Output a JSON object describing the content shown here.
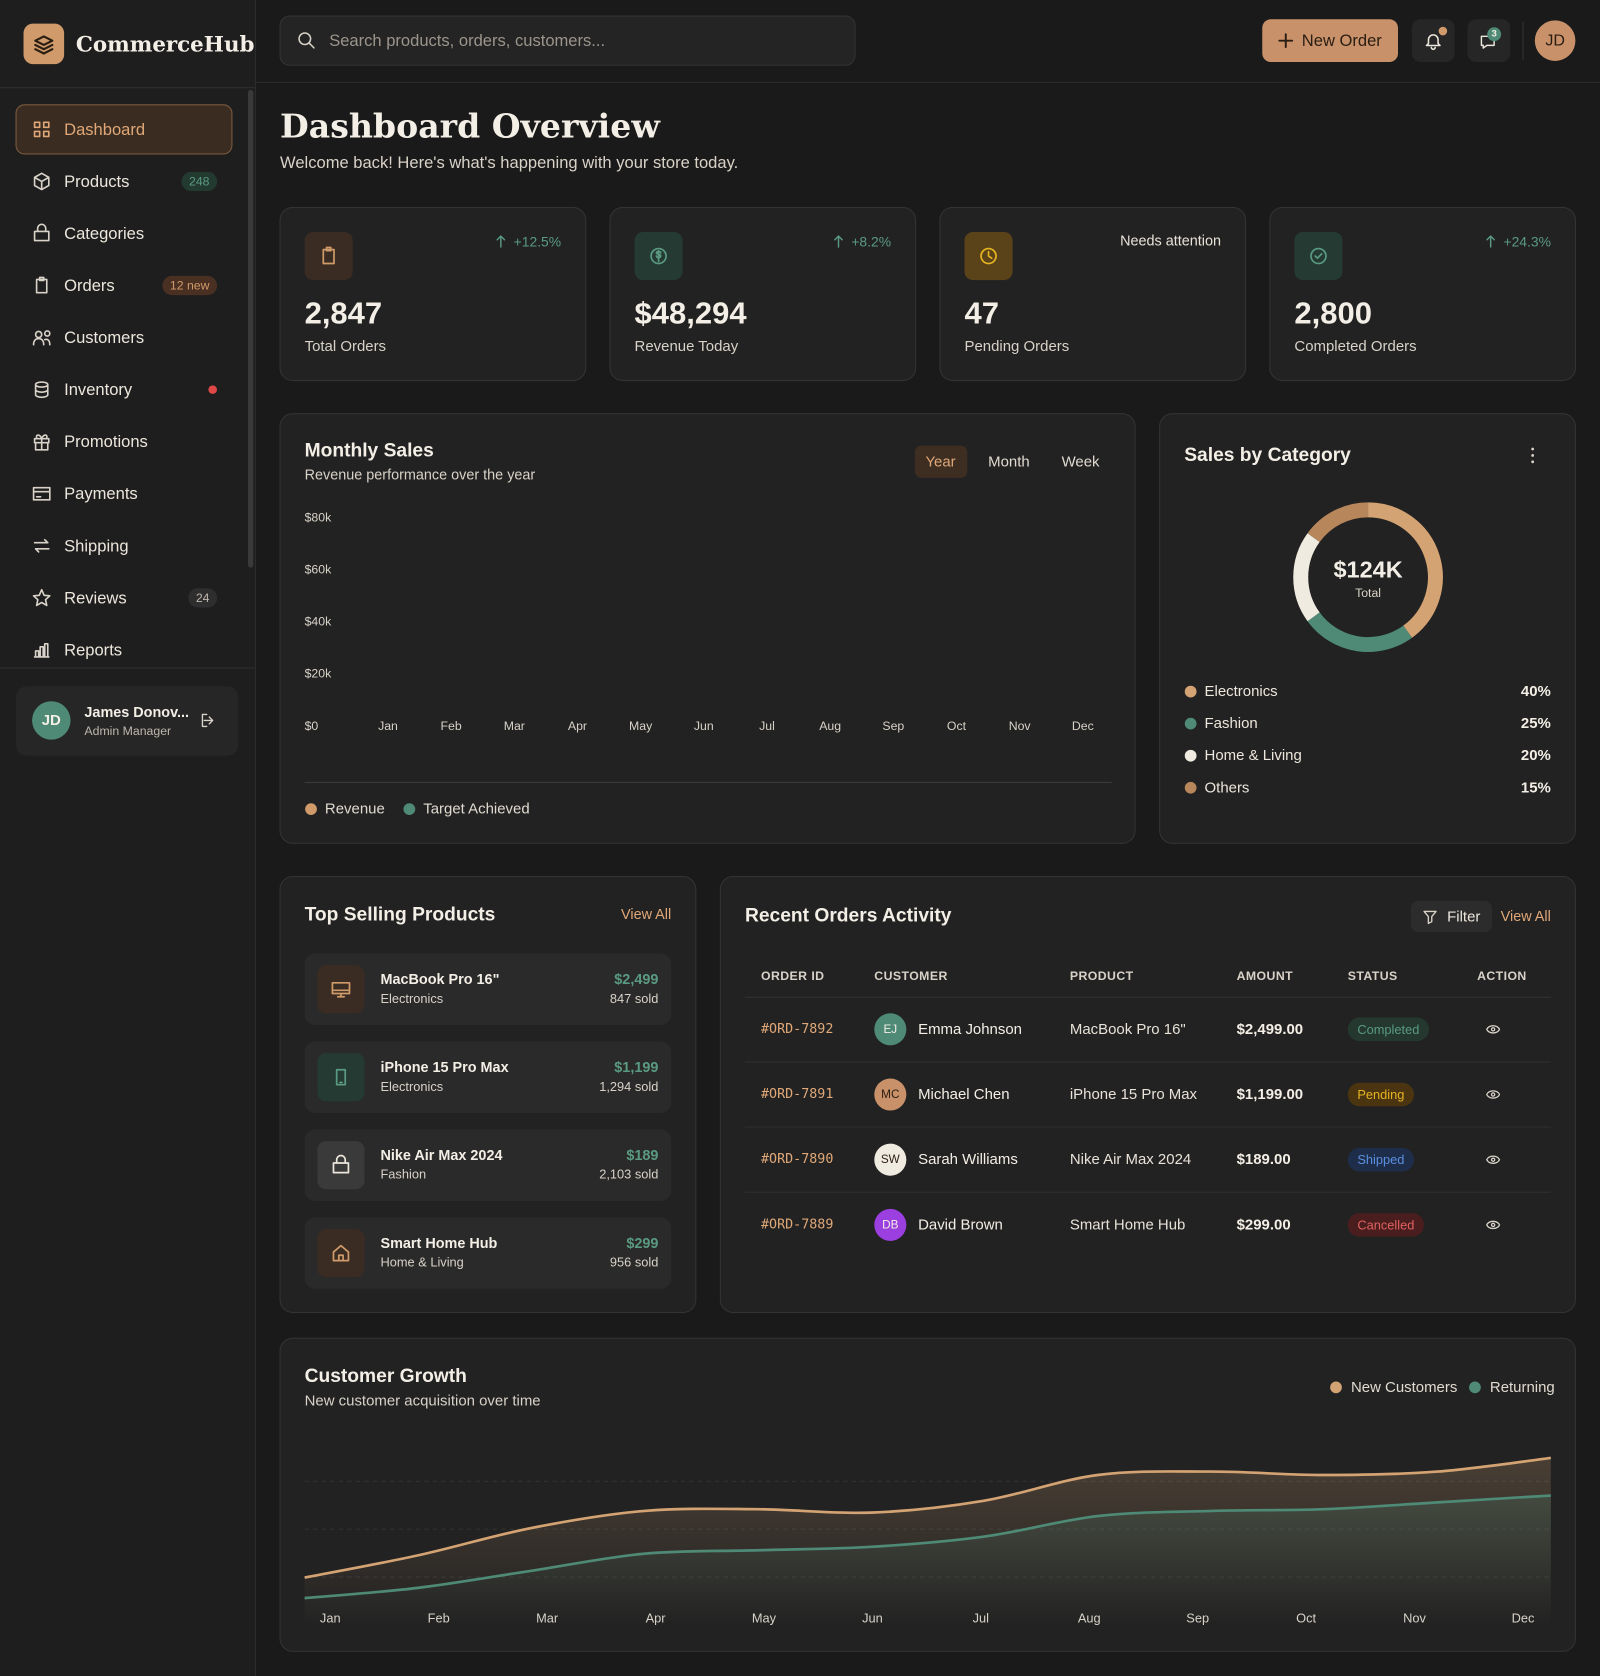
{
  "brand": "CommerceHub",
  "search_placeholder": "Search products, orders, customers...",
  "header": {
    "new_order": "New Order",
    "messages_badge": "3",
    "avatar": "JD"
  },
  "nav": [
    {
      "label": "Dashboard"
    },
    {
      "label": "Products",
      "badge": "248"
    },
    {
      "label": "Categories"
    },
    {
      "label": "Orders",
      "badge": "12 new"
    },
    {
      "label": "Customers"
    },
    {
      "label": "Inventory"
    },
    {
      "label": "Promotions"
    },
    {
      "label": "Payments"
    },
    {
      "label": "Shipping"
    },
    {
      "label": "Reviews",
      "badge": "24"
    },
    {
      "label": "Reports"
    }
  ],
  "user": {
    "initials": "JD",
    "name": "James Donov...",
    "role": "Admin Manager"
  },
  "page": {
    "title": "Dashboard Overview",
    "subtitle": "Welcome back! Here's what's happening with your store today."
  },
  "stats": [
    {
      "value": "2,847",
      "label": "Total Orders",
      "change": "+12.5%"
    },
    {
      "value": "$48,294",
      "label": "Revenue Today",
      "change": "+8.2%"
    },
    {
      "value": "47",
      "label": "Pending Orders",
      "note": "Needs attention"
    },
    {
      "value": "2,800",
      "label": "Completed Orders",
      "change": "+24.3%"
    }
  ],
  "monthly_sales": {
    "title": "Monthly Sales",
    "subtitle": "Revenue performance over the year",
    "tabs": [
      "Year",
      "Month",
      "Week"
    ],
    "chart_data": {
      "type": "bar",
      "categories": [
        "Jan",
        "Feb",
        "Mar",
        "Apr",
        "May",
        "Jun",
        "Jul",
        "Aug",
        "Sep",
        "Oct",
        "Nov",
        "Dec"
      ],
      "ylim": [
        0,
        80000
      ],
      "yticks": [
        {
          "value": 0,
          "label": "$0"
        },
        {
          "value": 20000,
          "label": "$20k"
        },
        {
          "value": 40000,
          "label": "$40k"
        },
        {
          "value": 60000,
          "label": "$60k"
        },
        {
          "value": 80000,
          "label": "$80k"
        }
      ],
      "grid": false,
      "series": [
        {
          "name": "Revenue",
          "color": "#d09a6a",
          "values": [
            null,
            null,
            null,
            null,
            null,
            null,
            null,
            null,
            null,
            null,
            null,
            null
          ]
        },
        {
          "name": "Target Achieved",
          "color": "#4e8a76",
          "values": [
            null,
            null,
            null,
            null,
            null,
            null,
            null,
            null,
            null,
            null,
            null,
            null
          ]
        }
      ]
    }
  },
  "category": {
    "title": "Sales by Category",
    "center_value": "$124K",
    "center_label": "Total",
    "chart_data": {
      "type": "pie",
      "categories": [
        "Electronics",
        "Fashion",
        "Home & Living",
        "Others"
      ],
      "values": [
        40,
        25,
        20,
        15
      ],
      "value_labels": [
        "40%",
        "25%",
        "20%",
        "15%"
      ],
      "colors": [
        "#d4a373",
        "#4e8a76",
        "#f0ebe0",
        "#b8865b"
      ]
    }
  },
  "top_products": {
    "title": "Top Selling Products",
    "view_all": "View All",
    "items": [
      {
        "name": "MacBook Pro 16\"",
        "category": "Electronics",
        "price": "$2,499",
        "sold": "847 sold"
      },
      {
        "name": "iPhone 15 Pro Max",
        "category": "Electronics",
        "price": "$1,199",
        "sold": "1,294 sold"
      },
      {
        "name": "Nike Air Max 2024",
        "category": "Fashion",
        "price": "$189",
        "sold": "2,103 sold"
      },
      {
        "name": "Smart Home Hub",
        "category": "Home & Living",
        "price": "$299",
        "sold": "956 sold"
      }
    ]
  },
  "orders": {
    "title": "Recent Orders Activity",
    "filter": "Filter",
    "view_all": "View All",
    "columns": [
      "ORDER ID",
      "CUSTOMER",
      "PRODUCT",
      "AMOUNT",
      "STATUS",
      "ACTION"
    ],
    "rows": [
      {
        "id": "#ORD-7892",
        "initials": "EJ",
        "customer": "Emma Johnson",
        "product": "MacBook Pro 16\"",
        "amount": "$2,499.00",
        "status": "Completed"
      },
      {
        "id": "#ORD-7891",
        "initials": "MC",
        "customer": "Michael Chen",
        "product": "iPhone 15 Pro Max",
        "amount": "$1,199.00",
        "status": "Pending"
      },
      {
        "id": "#ORD-7890",
        "initials": "SW",
        "customer": "Sarah Williams",
        "product": "Nike Air Max 2024",
        "amount": "$189.00",
        "status": "Shipped"
      },
      {
        "id": "#ORD-7889",
        "initials": "DB",
        "customer": "David Brown",
        "product": "Smart Home Hub",
        "amount": "$299.00",
        "status": "Cancelled"
      }
    ]
  },
  "growth": {
    "title": "Customer Growth",
    "subtitle": "New customer acquisition over time",
    "chart_data": {
      "type": "area",
      "categories": [
        "Jan",
        "Feb",
        "Mar",
        "Apr",
        "May",
        "Jun",
        "Jul",
        "Aug",
        "Sep",
        "Oct",
        "Nov",
        "Dec"
      ],
      "ylim": [
        0,
        100
      ],
      "grid": true,
      "series": [
        {
          "name": "New Customers",
          "color": "#d4a373",
          "values": [
            15,
            28,
            44,
            54,
            55,
            53,
            60,
            75,
            77,
            75,
            77,
            85
          ]
        },
        {
          "name": "Returning",
          "color": "#4e8a76",
          "values": [
            3,
            9,
            19,
            29,
            31,
            33,
            39,
            51,
            54,
            55,
            59,
            63
          ]
        }
      ]
    }
  }
}
